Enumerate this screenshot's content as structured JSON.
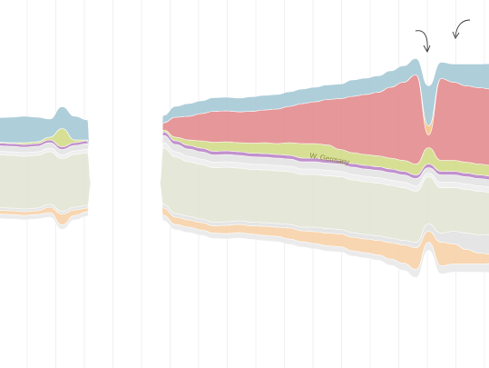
{
  "chart_data": {
    "type": "area",
    "subtype": "streamgraph",
    "grid": "vertical",
    "x": [
      0,
      1,
      2,
      3,
      4,
      5,
      6,
      7,
      8,
      9,
      10,
      11,
      12,
      13,
      14,
      15,
      16,
      17,
      18,
      19,
      20,
      21,
      22,
      23,
      24,
      25,
      26,
      27,
      28,
      29,
      30,
      31,
      32,
      33,
      34,
      35,
      36,
      37,
      38,
      39,
      40
    ],
    "gap": [
      9,
      13
    ],
    "segments": [
      [
        0,
        8
      ],
      [
        14,
        40
      ]
    ],
    "series_colors": {
      "gray1": "#e9e9e9",
      "sand": "#f7d2a9",
      "gray2": "#e3e3e3",
      "olive": "#e3e6d4",
      "gray3": "#eeeeee",
      "gray4": "#e4e4e4",
      "purple": "#bb86c8",
      "lime": "#d3dc8a",
      "red": "#e48c8e",
      "orange": "#f4c487",
      "blue": "#a6c9d6"
    },
    "annotations": [
      {
        "label": "W. Germany",
        "series": "lime"
      }
    ],
    "series": [
      {
        "key": "gray1",
        "values": [
          5,
          5,
          5,
          5,
          5,
          5,
          5,
          5,
          5,
          0,
          0,
          0,
          0,
          0,
          6,
          6,
          6,
          6,
          6,
          6,
          6,
          6,
          6,
          6,
          6,
          6,
          6,
          6,
          6,
          6,
          6,
          6,
          7,
          8,
          9,
          9,
          9,
          9,
          9,
          9,
          10
        ]
      },
      {
        "key": "sand",
        "values": [
          4,
          4,
          4,
          4,
          4,
          6,
          12,
          6,
          4,
          0,
          0,
          0,
          0,
          0,
          8,
          8,
          8,
          8,
          8,
          9,
          9,
          9,
          10,
          10,
          12,
          12,
          13,
          14,
          14,
          15,
          15,
          16,
          18,
          20,
          24,
          12,
          26,
          22,
          16,
          12,
          10
        ]
      },
      {
        "key": "gray2",
        "values": [
          3,
          3,
          3,
          3,
          3,
          3,
          3,
          3,
          3,
          0,
          0,
          0,
          0,
          0,
          4,
          4,
          4,
          4,
          4,
          4,
          4,
          4,
          4,
          4,
          4,
          4,
          5,
          5,
          5,
          5,
          5,
          5,
          5,
          5,
          6,
          8,
          10,
          14,
          18,
          20,
          22
        ]
      },
      {
        "key": "olive",
        "values": [
          58,
          58,
          58,
          58,
          58,
          58,
          58,
          58,
          58,
          0,
          0,
          0,
          0,
          0,
          62,
          62,
          60,
          60,
          60,
          60,
          58,
          58,
          58,
          58,
          58,
          58,
          58,
          58,
          58,
          58,
          58,
          58,
          58,
          58,
          56,
          52,
          50,
          48,
          48,
          48,
          46
        ]
      },
      {
        "key": "gray3",
        "values": [
          4,
          4,
          4,
          4,
          4,
          4,
          4,
          4,
          4,
          0,
          0,
          0,
          0,
          0,
          6,
          6,
          6,
          6,
          6,
          6,
          6,
          6,
          6,
          6,
          6,
          6,
          6,
          6,
          6,
          6,
          6,
          6,
          6,
          6,
          6,
          4,
          6,
          6,
          6,
          6,
          6
        ]
      },
      {
        "key": "gray4",
        "values": [
          6,
          6,
          6,
          6,
          6,
          6,
          6,
          6,
          6,
          0,
          0,
          0,
          0,
          0,
          8,
          8,
          8,
          8,
          8,
          8,
          8,
          8,
          8,
          8,
          8,
          8,
          8,
          8,
          8,
          8,
          8,
          8,
          8,
          8,
          8,
          6,
          8,
          8,
          8,
          8,
          8
        ]
      },
      {
        "key": "purple",
        "values": [
          3,
          3,
          3,
          3,
          3,
          3,
          3,
          3,
          3,
          0,
          0,
          0,
          0,
          0,
          4,
          4,
          4,
          4,
          4,
          4,
          4,
          4,
          4,
          4,
          4,
          4,
          4,
          4,
          4,
          4,
          4,
          4,
          4,
          4,
          4,
          4,
          4,
          4,
          4,
          4,
          4
        ]
      },
      {
        "key": "lime",
        "values": [
          1,
          1,
          1,
          2,
          2,
          3,
          20,
          3,
          1,
          0,
          0,
          0,
          0,
          0,
          2,
          4,
          6,
          8,
          10,
          10,
          10,
          11,
          12,
          12,
          14,
          16,
          16,
          16,
          12,
          12,
          12,
          12,
          12,
          12,
          12,
          18,
          12,
          12,
          12,
          12,
          12
        ]
      },
      {
        "key": "red",
        "values": [
          0,
          0,
          0,
          0,
          0,
          0,
          0,
          0,
          0,
          0,
          0,
          0,
          0,
          0,
          8,
          22,
          26,
          30,
          34,
          34,
          34,
          35,
          36,
          38,
          40,
          44,
          46,
          50,
          56,
          62,
          66,
          70,
          78,
          86,
          98,
          14,
          90,
          86,
          84,
          84,
          84
        ]
      },
      {
        "key": "orange",
        "values": [
          0,
          0,
          0,
          0,
          0,
          0,
          0,
          0,
          0,
          0,
          0,
          0,
          0,
          0,
          0,
          0,
          0,
          0,
          0,
          0,
          0,
          0,
          0,
          0,
          0,
          0,
          0,
          0,
          0,
          0,
          0,
          0,
          0,
          0,
          0,
          10,
          0,
          0,
          0,
          0,
          0
        ]
      },
      {
        "key": "blue",
        "values": [
          26,
          27,
          28,
          29,
          27,
          20,
          24,
          26,
          22,
          0,
          0,
          0,
          0,
          0,
          8,
          12,
          14,
          14,
          15,
          15,
          15,
          16,
          16,
          16,
          16,
          16,
          16,
          16,
          16,
          18,
          18,
          18,
          18,
          18,
          18,
          44,
          18,
          20,
          24,
          26,
          28
        ]
      }
    ]
  }
}
